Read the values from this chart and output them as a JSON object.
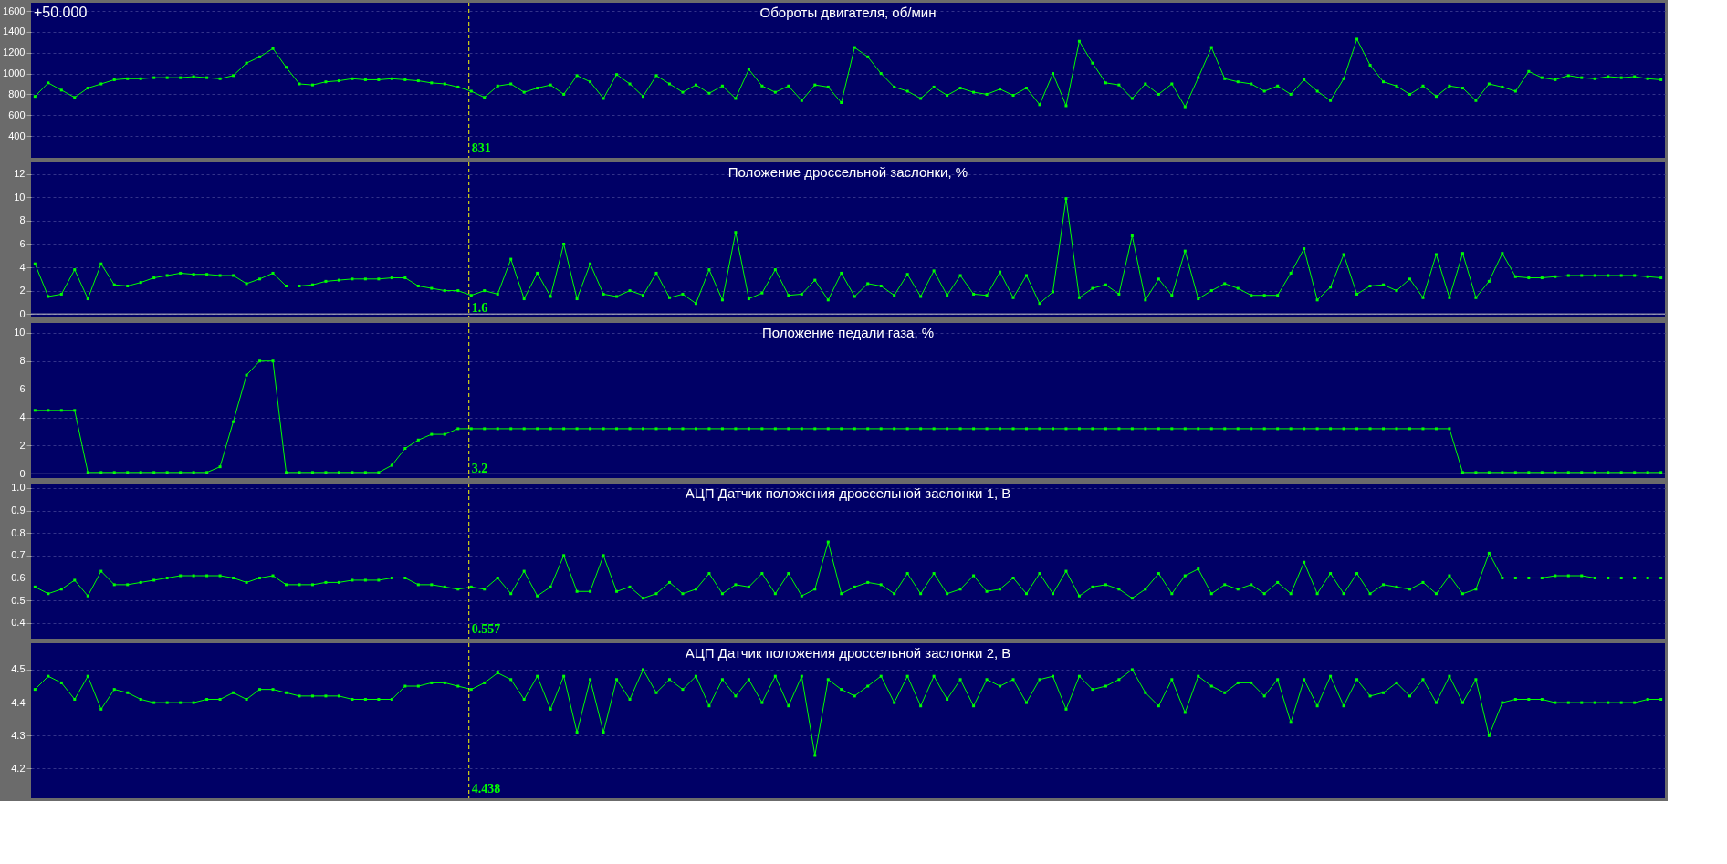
{
  "chart_data": [
    {
      "type": "line",
      "title": "Обороты  двигателя, об/мин",
      "marker": "square",
      "grid": "y",
      "tick_labels": "y",
      "categories": [
        null,
        null,
        null,
        null,
        null,
        null,
        null,
        null,
        null,
        null,
        null,
        null,
        null,
        null,
        null,
        null,
        null,
        null,
        null,
        null,
        null,
        null,
        null,
        null,
        null,
        null,
        null,
        null,
        null,
        null,
        null,
        null,
        null,
        null,
        null,
        null,
        null,
        null,
        null,
        null,
        null,
        null,
        null,
        null,
        null,
        null,
        null,
        null,
        null,
        null,
        null,
        null,
        null,
        null,
        null,
        null,
        null,
        null,
        null,
        null,
        null,
        null,
        null,
        null,
        null,
        null,
        null,
        null,
        null,
        null,
        null,
        null,
        null,
        null,
        null,
        null,
        null,
        null,
        null,
        null,
        null,
        null,
        null,
        null,
        null,
        null,
        null,
        null,
        null,
        null,
        null,
        null,
        null,
        null,
        null,
        null,
        null,
        null,
        null,
        null,
        null,
        null,
        null,
        null,
        null,
        null,
        null,
        null,
        null,
        null,
        null,
        null,
        null,
        null,
        null,
        null,
        null,
        null,
        null,
        null,
        null,
        null,
        null,
        null
      ],
      "series": [
        {
          "color": "#00ff00",
          "values": [
            780,
            910,
            840,
            770,
            860,
            900,
            940,
            950,
            950,
            960,
            960,
            960,
            970,
            960,
            950,
            980,
            1100,
            1160,
            1240,
            1060,
            900,
            890,
            920,
            930,
            950,
            940,
            940,
            950,
            940,
            930,
            910,
            900,
            870,
            830,
            770,
            880,
            900,
            820,
            860,
            890,
            800,
            980,
            920,
            760,
            990,
            900,
            780,
            980,
            900,
            820,
            890,
            810,
            880,
            760,
            1040,
            880,
            820,
            880,
            740,
            890,
            870,
            720,
            1250,
            1160,
            1000,
            870,
            830,
            760,
            870,
            790,
            860,
            820,
            800,
            850,
            790,
            860,
            700,
            1000,
            690,
            1310,
            1100,
            910,
            890,
            760,
            900,
            800,
            900,
            680,
            960,
            1250,
            950,
            920,
            900,
            830,
            880,
            800,
            940,
            830,
            740,
            950,
            1330,
            1080,
            920,
            880,
            800,
            880,
            780,
            880,
            860,
            740,
            900,
            870,
            830,
            1020,
            960,
            940,
            980,
            960,
            950,
            970,
            960,
            970,
            950,
            940
          ]
        }
      ],
      "ylim": [
        190,
        1680
      ],
      "yticks": [
        400,
        600,
        800,
        1000,
        1200,
        1400,
        1600
      ],
      "annotations": [
        "+50.000",
        "831"
      ]
    },
    {
      "type": "line",
      "title": "Положение дроссельной заслонки, %",
      "marker": "square",
      "grid": "y",
      "tick_labels": "y",
      "categories": [
        null,
        null,
        null,
        null,
        null,
        null,
        null,
        null,
        null,
        null,
        null,
        null,
        null,
        null,
        null,
        null,
        null,
        null,
        null,
        null,
        null,
        null,
        null,
        null,
        null,
        null,
        null,
        null,
        null,
        null,
        null,
        null,
        null,
        null,
        null,
        null,
        null,
        null,
        null,
        null,
        null,
        null,
        null,
        null,
        null,
        null,
        null,
        null,
        null,
        null,
        null,
        null,
        null,
        null,
        null,
        null,
        null,
        null,
        null,
        null,
        null,
        null,
        null,
        null,
        null,
        null,
        null,
        null,
        null,
        null,
        null,
        null,
        null,
        null,
        null,
        null,
        null,
        null,
        null,
        null,
        null,
        null,
        null,
        null,
        null,
        null,
        null,
        null,
        null,
        null,
        null,
        null,
        null,
        null,
        null,
        null,
        null,
        null,
        null,
        null,
        null,
        null,
        null,
        null,
        null,
        null,
        null,
        null,
        null,
        null,
        null,
        null,
        null,
        null,
        null,
        null,
        null,
        null,
        null,
        null,
        null,
        null,
        null,
        null
      ],
      "series": [
        {
          "color": "#00ff00",
          "values": [
            4.3,
            1.5,
            1.7,
            3.8,
            1.3,
            4.3,
            2.5,
            2.4,
            2.7,
            3.1,
            3.3,
            3.5,
            3.4,
            3.4,
            3.3,
            3.3,
            2.6,
            3.0,
            3.5,
            2.4,
            2.4,
            2.5,
            2.8,
            2.9,
            3.0,
            3.0,
            3.0,
            3.1,
            3.1,
            2.4,
            2.2,
            2.0,
            2.0,
            1.6,
            2.0,
            1.7,
            4.7,
            1.3,
            3.5,
            1.5,
            6.0,
            1.3,
            4.3,
            1.7,
            1.5,
            2.0,
            1.6,
            3.5,
            1.4,
            1.7,
            0.9,
            3.8,
            1.2,
            7.0,
            1.3,
            1.8,
            3.8,
            1.6,
            1.7,
            2.9,
            1.2,
            3.5,
            1.5,
            2.6,
            2.4,
            1.6,
            3.4,
            1.5,
            3.7,
            1.6,
            3.3,
            1.7,
            1.6,
            3.6,
            1.4,
            3.3,
            0.9,
            1.9,
            9.9,
            1.4,
            2.2,
            2.5,
            1.7,
            6.7,
            1.2,
            3.0,
            1.6,
            5.4,
            1.3,
            2.0,
            2.6,
            2.2,
            1.6,
            1.6,
            1.6,
            3.5,
            5.6,
            1.2,
            2.3,
            5.1,
            1.7,
            2.4,
            2.5,
            2.0,
            3.0,
            1.4,
            5.1,
            1.4,
            5.2,
            1.4,
            2.8,
            5.2,
            3.2,
            3.1,
            3.1,
            3.2,
            3.3,
            3.3,
            3.3,
            3.3,
            3.3,
            3.3,
            3.2,
            3.1
          ]
        }
      ],
      "ylim": [
        -0.3,
        13
      ],
      "yticks": [
        0,
        2,
        4,
        6,
        8,
        10,
        12
      ],
      "ref_lines": [
        {
          "axis": "y",
          "value": 0,
          "color": "#c8c8c8",
          "line_style": "solid"
        }
      ],
      "annotations": [
        "1.6"
      ]
    },
    {
      "type": "line",
      "title": "Положение педали газа, %",
      "marker": "square",
      "grid": "y",
      "tick_labels": "y",
      "categories": [
        null,
        null,
        null,
        null,
        null,
        null,
        null,
        null,
        null,
        null,
        null,
        null,
        null,
        null,
        null,
        null,
        null,
        null,
        null,
        null,
        null,
        null,
        null,
        null,
        null,
        null,
        null,
        null,
        null,
        null,
        null,
        null,
        null,
        null,
        null,
        null,
        null,
        null,
        null,
        null,
        null,
        null,
        null,
        null,
        null,
        null,
        null,
        null,
        null,
        null,
        null,
        null,
        null,
        null,
        null,
        null,
        null,
        null,
        null,
        null,
        null,
        null,
        null,
        null,
        null,
        null,
        null,
        null,
        null,
        null,
        null,
        null,
        null,
        null,
        null,
        null,
        null,
        null,
        null,
        null,
        null,
        null,
        null,
        null,
        null,
        null,
        null,
        null,
        null,
        null,
        null,
        null,
        null,
        null,
        null,
        null,
        null,
        null,
        null,
        null,
        null,
        null,
        null,
        null,
        null,
        null,
        null,
        null,
        null,
        null,
        null,
        null,
        null,
        null,
        null,
        null,
        null,
        null,
        null,
        null,
        null,
        null,
        null,
        null
      ],
      "series": [
        {
          "color": "#00ff00",
          "values": [
            4.5,
            4.5,
            4.5,
            4.5,
            0.1,
            0.1,
            0.1,
            0.1,
            0.1,
            0.1,
            0.1,
            0.1,
            0.1,
            0.1,
            0.5,
            3.7,
            7.0,
            8.0,
            8.0,
            0.1,
            0.1,
            0.1,
            0.1,
            0.1,
            0.1,
            0.1,
            0.1,
            0.6,
            1.8,
            2.4,
            2.8,
            2.8,
            3.2,
            3.2,
            3.2,
            3.2,
            3.2,
            3.2,
            3.2,
            3.2,
            3.2,
            3.2,
            3.2,
            3.2,
            3.2,
            3.2,
            3.2,
            3.2,
            3.2,
            3.2,
            3.2,
            3.2,
            3.2,
            3.2,
            3.2,
            3.2,
            3.2,
            3.2,
            3.2,
            3.2,
            3.2,
            3.2,
            3.2,
            3.2,
            3.2,
            3.2,
            3.2,
            3.2,
            3.2,
            3.2,
            3.2,
            3.2,
            3.2,
            3.2,
            3.2,
            3.2,
            3.2,
            3.2,
            3.2,
            3.2,
            3.2,
            3.2,
            3.2,
            3.2,
            3.2,
            3.2,
            3.2,
            3.2,
            3.2,
            3.2,
            3.2,
            3.2,
            3.2,
            3.2,
            3.2,
            3.2,
            3.2,
            3.2,
            3.2,
            3.2,
            3.2,
            3.2,
            3.2,
            3.2,
            3.2,
            3.2,
            3.2,
            3.2,
            0.1,
            0.1,
            0.1,
            0.1,
            0.1,
            0.1,
            0.1,
            0.1,
            0.1,
            0.1,
            0.1,
            0.1,
            0.1,
            0.1,
            0.1,
            0.1
          ]
        }
      ],
      "ylim": [
        -0.3,
        10.7
      ],
      "yticks": [
        0,
        2,
        4,
        6,
        8,
        10
      ],
      "ref_lines": [
        {
          "axis": "y",
          "value": 0,
          "color": "#c8c8c8",
          "line_style": "solid"
        }
      ],
      "annotations": [
        "3.2"
      ]
    },
    {
      "type": "line",
      "title": "АЦП Датчик положения дроссельной заслонки 1, В",
      "marker": "square",
      "grid": "y",
      "tick_labels": "y",
      "categories": [
        null,
        null,
        null,
        null,
        null,
        null,
        null,
        null,
        null,
        null,
        null,
        null,
        null,
        null,
        null,
        null,
        null,
        null,
        null,
        null,
        null,
        null,
        null,
        null,
        null,
        null,
        null,
        null,
        null,
        null,
        null,
        null,
        null,
        null,
        null,
        null,
        null,
        null,
        null,
        null,
        null,
        null,
        null,
        null,
        null,
        null,
        null,
        null,
        null,
        null,
        null,
        null,
        null,
        null,
        null,
        null,
        null,
        null,
        null,
        null,
        null,
        null,
        null,
        null,
        null,
        null,
        null,
        null,
        null,
        null,
        null,
        null,
        null,
        null,
        null,
        null,
        null,
        null,
        null,
        null,
        null,
        null,
        null,
        null,
        null,
        null,
        null,
        null,
        null,
        null,
        null,
        null,
        null,
        null,
        null,
        null,
        null,
        null,
        null,
        null,
        null,
        null,
        null,
        null,
        null,
        null,
        null,
        null,
        null,
        null,
        null,
        null,
        null,
        null,
        null,
        null,
        null,
        null,
        null,
        null,
        null,
        null,
        null,
        null
      ],
      "series": [
        {
          "color": "#00ff00",
          "values": [
            0.56,
            0.53,
            0.55,
            0.59,
            0.52,
            0.63,
            0.57,
            0.57,
            0.58,
            0.59,
            0.6,
            0.61,
            0.61,
            0.61,
            0.61,
            0.6,
            0.58,
            0.6,
            0.61,
            0.57,
            0.57,
            0.57,
            0.58,
            0.58,
            0.59,
            0.59,
            0.59,
            0.6,
            0.6,
            0.57,
            0.57,
            0.56,
            0.55,
            0.56,
            0.55,
            0.6,
            0.53,
            0.63,
            0.52,
            0.56,
            0.7,
            0.54,
            0.54,
            0.7,
            0.54,
            0.56,
            0.51,
            0.53,
            0.58,
            0.53,
            0.55,
            0.62,
            0.53,
            0.57,
            0.56,
            0.62,
            0.53,
            0.62,
            0.52,
            0.55,
            0.76,
            0.53,
            0.56,
            0.58,
            0.57,
            0.53,
            0.62,
            0.53,
            0.62,
            0.53,
            0.55,
            0.61,
            0.54,
            0.55,
            0.6,
            0.53,
            0.62,
            0.53,
            0.63,
            0.52,
            0.56,
            0.57,
            0.55,
            0.51,
            0.55,
            0.62,
            0.53,
            0.61,
            0.64,
            0.53,
            0.57,
            0.55,
            0.57,
            0.53,
            0.58,
            0.53,
            0.67,
            0.53,
            0.62,
            0.53,
            0.62,
            0.53,
            0.57,
            0.56,
            0.55,
            0.58,
            0.53,
            0.61,
            0.53,
            0.55,
            0.71,
            0.6,
            0.6,
            0.6,
            0.6,
            0.61,
            0.61,
            0.61,
            0.6,
            0.6,
            0.6,
            0.6,
            0.6,
            0.6
          ]
        }
      ],
      "ylim": [
        0.33,
        1.02
      ],
      "yticks": [
        0.4,
        0.5,
        0.6,
        0.7,
        0.8,
        0.9,
        {
          "value": 1,
          "label": "1.0"
        }
      ],
      "annotations": [
        "0.557"
      ]
    },
    {
      "type": "line",
      "title": "АЦП Датчик положения дроссельной заслонки 2, В",
      "marker": "square",
      "grid": "y",
      "tick_labels": "y",
      "categories": [
        null,
        null,
        null,
        null,
        null,
        null,
        null,
        null,
        null,
        null,
        null,
        null,
        null,
        null,
        null,
        null,
        null,
        null,
        null,
        null,
        null,
        null,
        null,
        null,
        null,
        null,
        null,
        null,
        null,
        null,
        null,
        null,
        null,
        null,
        null,
        null,
        null,
        null,
        null,
        null,
        null,
        null,
        null,
        null,
        null,
        null,
        null,
        null,
        null,
        null,
        null,
        null,
        null,
        null,
        null,
        null,
        null,
        null,
        null,
        null,
        null,
        null,
        null,
        null,
        null,
        null,
        null,
        null,
        null,
        null,
        null,
        null,
        null,
        null,
        null,
        null,
        null,
        null,
        null,
        null,
        null,
        null,
        null,
        null,
        null,
        null,
        null,
        null,
        null,
        null,
        null,
        null,
        null,
        null,
        null,
        null,
        null,
        null,
        null,
        null,
        null,
        null,
        null,
        null,
        null,
        null,
        null,
        null,
        null,
        null,
        null,
        null,
        null,
        null,
        null,
        null,
        null,
        null,
        null,
        null,
        null,
        null,
        null,
        null
      ],
      "series": [
        {
          "color": "#00ff00",
          "values": [
            4.44,
            4.48,
            4.46,
            4.41,
            4.48,
            4.38,
            4.44,
            4.43,
            4.41,
            4.4,
            4.4,
            4.4,
            4.4,
            4.41,
            4.41,
            4.43,
            4.41,
            4.44,
            4.44,
            4.43,
            4.42,
            4.42,
            4.42,
            4.42,
            4.41,
            4.41,
            4.41,
            4.41,
            4.45,
            4.45,
            4.46,
            4.46,
            4.45,
            4.44,
            4.46,
            4.49,
            4.47,
            4.41,
            4.48,
            4.38,
            4.48,
            4.31,
            4.47,
            4.31,
            4.47,
            4.41,
            4.5,
            4.43,
            4.47,
            4.44,
            4.48,
            4.39,
            4.47,
            4.42,
            4.47,
            4.4,
            4.48,
            4.39,
            4.48,
            4.24,
            4.47,
            4.44,
            4.42,
            4.45,
            4.48,
            4.4,
            4.48,
            4.39,
            4.48,
            4.41,
            4.47,
            4.39,
            4.47,
            4.45,
            4.47,
            4.4,
            4.47,
            4.48,
            4.38,
            4.48,
            4.44,
            4.45,
            4.47,
            4.5,
            4.43,
            4.39,
            4.47,
            4.37,
            4.48,
            4.45,
            4.43,
            4.46,
            4.46,
            4.42,
            4.47,
            4.34,
            4.47,
            4.39,
            4.48,
            4.39,
            4.47,
            4.42,
            4.43,
            4.46,
            4.42,
            4.47,
            4.4,
            4.48,
            4.4,
            4.47,
            4.3,
            4.4,
            4.41,
            4.41,
            4.41,
            4.4,
            4.4,
            4.4,
            4.4,
            4.4,
            4.4,
            4.4,
            4.41,
            4.41
          ]
        }
      ],
      "ylim": [
        4.11,
        4.58
      ],
      "yticks": [
        4.2,
        4.3,
        4.4,
        4.5
      ],
      "annotations": [
        "4.438"
      ]
    }
  ]
}
